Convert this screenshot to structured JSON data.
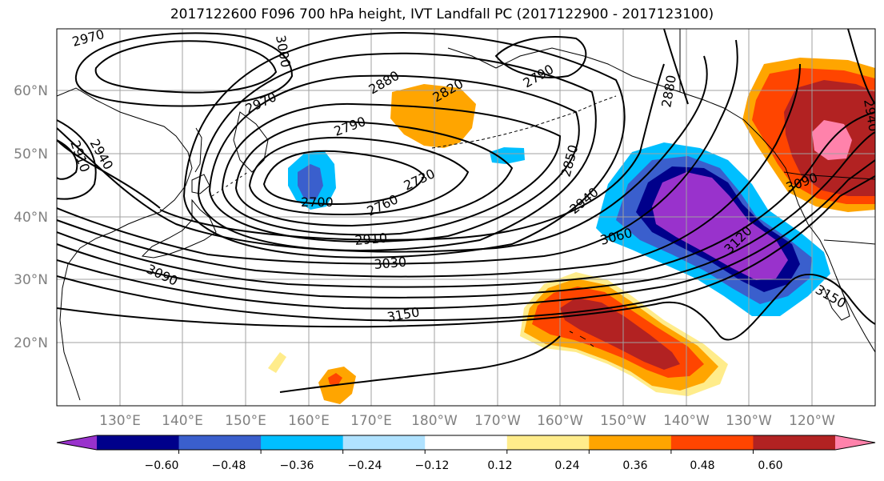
{
  "title": "2017122600 F096 700 hPa height, IVT Landfall PC (2017122900 - 2017123100)",
  "lat_labels": [
    "20°N",
    "30°N",
    "40°N",
    "50°N",
    "60°N"
  ],
  "lon_labels": [
    "130°E",
    "140°E",
    "150°E",
    "160°E",
    "170°E",
    "180°W",
    "170°W",
    "160°W",
    "150°W",
    "140°W",
    "130°W",
    "120°W"
  ],
  "contour_labels": [
    "2970",
    "3000",
    "2880",
    "2820",
    "2790",
    "2880",
    "2910",
    "2940",
    "2970",
    "2790",
    "2730",
    "2700",
    "2760",
    "2850",
    "2940",
    "3060",
    "3120",
    "2910",
    "3030",
    "3090",
    "3150",
    "3150",
    "3090",
    "2940"
  ],
  "colorbar": {
    "colors": [
      "#9932CC",
      "#00008B",
      "#3A5FCD",
      "#00BFFF",
      "#B0E2FF",
      "#FFFFFF",
      "#FFEC8B",
      "#FFA500",
      "#FF4500",
      "#B22222",
      "#FF82AB"
    ],
    "tick_labels": [
      "−0.60",
      "−0.48",
      "−0.36",
      "−0.24",
      "−0.12",
      "0.12",
      "0.24",
      "0.36",
      "0.48",
      "0.60"
    ]
  }
}
